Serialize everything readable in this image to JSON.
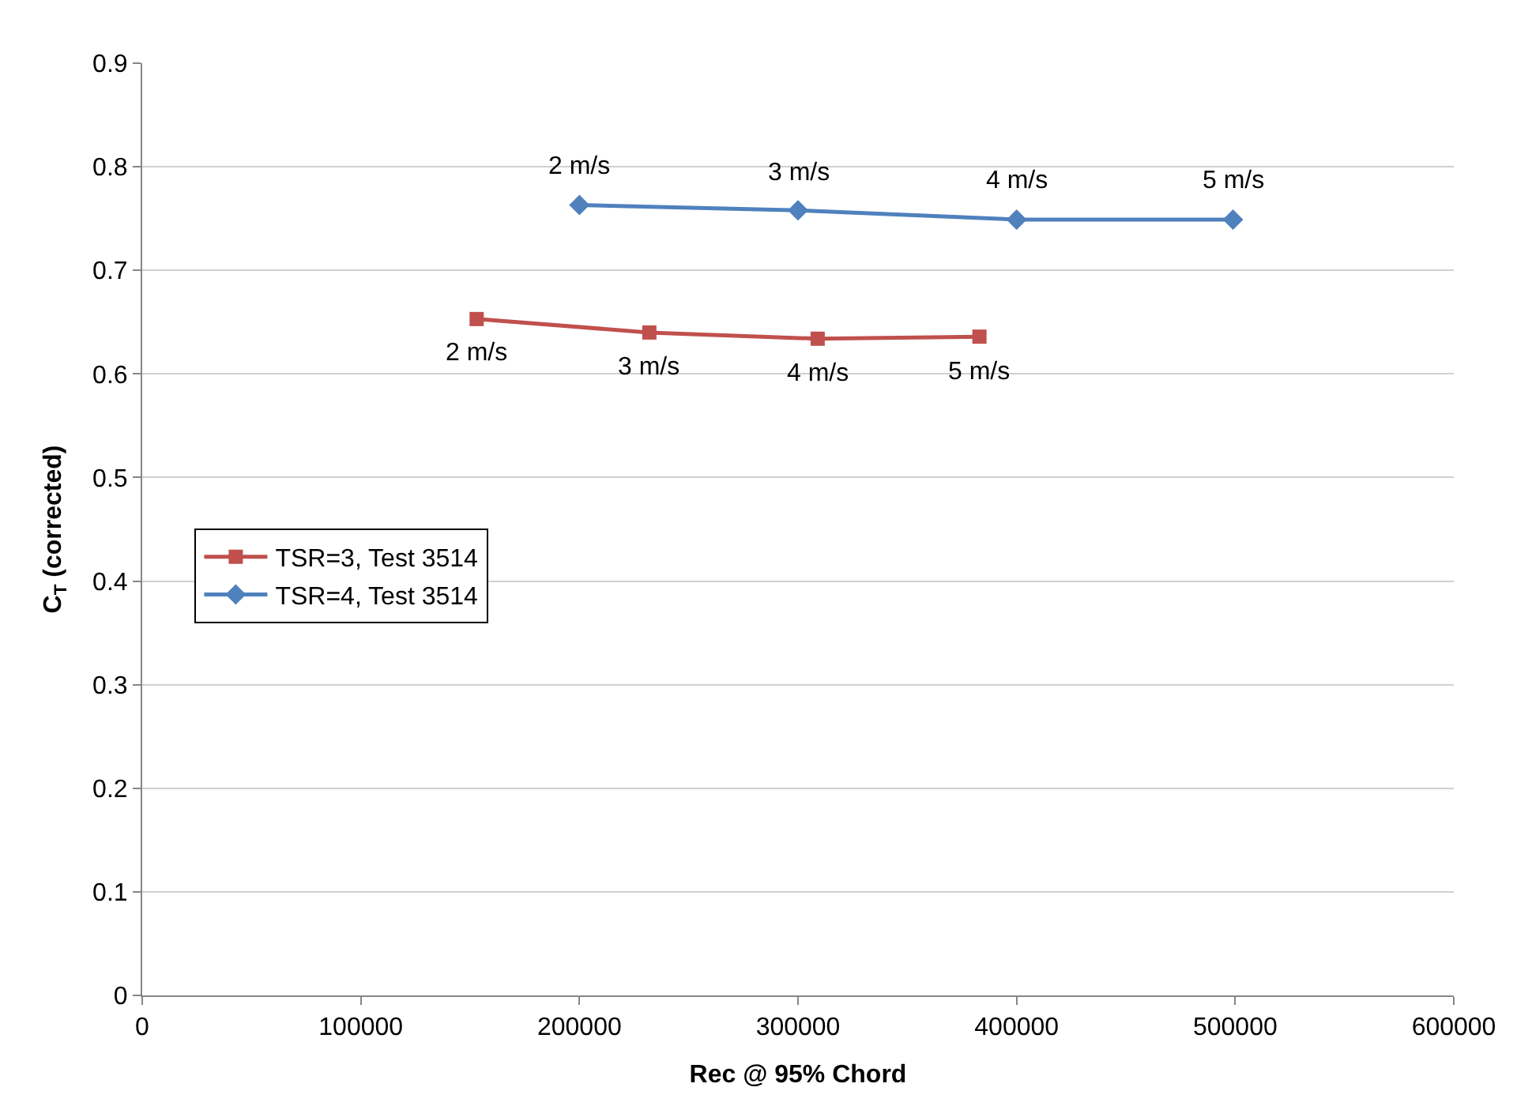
{
  "chart_data": {
    "type": "line",
    "xlabel": "Rec @ 95% Chord",
    "ylabel": "C$_{T}$ (corrected)",
    "xlim": [
      0,
      600000
    ],
    "xticks": [
      0,
      100000,
      200000,
      300000,
      400000,
      500000,
      600000
    ],
    "ylim": [
      0,
      0.9
    ],
    "yticks": [
      0,
      0.1,
      0.2,
      0.3,
      0.4,
      0.5,
      0.6,
      0.7,
      0.8,
      0.9
    ],
    "grid": "y",
    "legend": "left",
    "annotations": [
      {
        "text": "2 m/s",
        "x": 153000,
        "y": 0.653
      },
      {
        "text": "3 m/s",
        "x": 232000,
        "y": 0.64
      },
      {
        "text": "4 m/s",
        "x": 309000,
        "y": 0.634
      },
      {
        "text": "5 m/s",
        "x": 383000,
        "y": 0.636
      },
      {
        "text": "2 m/s",
        "x": 200000,
        "y": 0.763
      },
      {
        "text": "3 m/s",
        "x": 300000,
        "y": 0.758
      },
      {
        "text": "4 m/s",
        "x": 400000,
        "y": 0.749
      },
      {
        "text": "5 m/s",
        "x": 499000,
        "y": 0.749
      }
    ],
    "series": [
      {
        "name": "TSR=3, Test 3514",
        "color": "#c0504d",
        "marker": "square",
        "x": [
          153000,
          232000,
          309000,
          383000
        ],
        "values": [
          0.653,
          0.64,
          0.634,
          0.636
        ]
      },
      {
        "name": "TSR=4, Test 3514",
        "color": "#4f81bd",
        "marker": "diamond",
        "x": [
          200000,
          300000,
          400000,
          499000
        ],
        "values": [
          0.763,
          0.758,
          0.749,
          0.749
        ]
      }
    ]
  }
}
